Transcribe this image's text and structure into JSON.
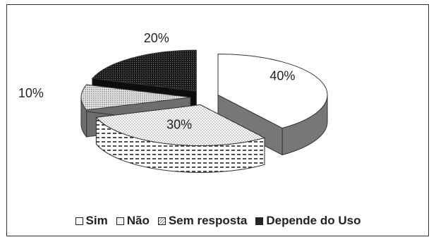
{
  "chart_data": {
    "type": "pie",
    "title": "",
    "categories": [
      "Sim",
      "Não",
      "Sem resposta",
      "Depende do Uso"
    ],
    "values": [
      40,
      30,
      10,
      20
    ],
    "labels": [
      "40%",
      "30%",
      "10%",
      "20%"
    ],
    "legend": {
      "position": "bottom",
      "entries": [
        "Sim",
        "Não",
        "Sem resposta",
        "Depende do Uso"
      ]
    },
    "colors": {
      "border": "#333333",
      "background": "#ffffff",
      "sim": "#ffffff",
      "nao": "#f2f2f2",
      "sem_resposta": "#d9d9d9",
      "depende": "#262626"
    },
    "style": "3d-exploded"
  }
}
